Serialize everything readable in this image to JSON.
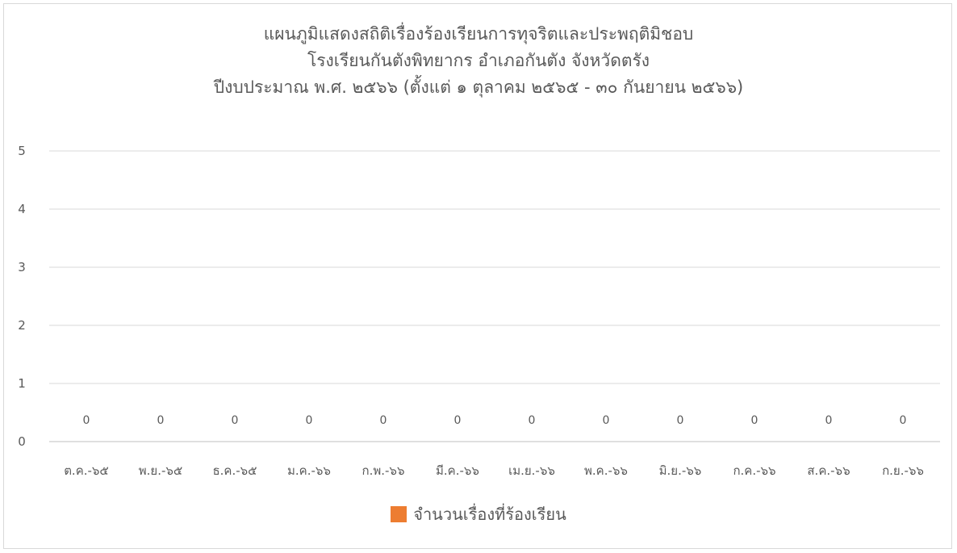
{
  "chart_data": {
    "type": "bar",
    "title": [
      "แผนภูมิแสดงสถิติเรื่องร้องเรียนการทุจริตและประพฤติมิชอบ",
      "โรงเรียนกันตังพิทยากร อำเภอกันตัง จังหวัดตรัง",
      "ปีงบประมาณ พ.ศ. ๒๕๖๖ (ตั้งแต่ ๑ ตุลาคม ๒๕๖๕ - ๓๐ กันยายน ๒๕๖๖)"
    ],
    "categories": [
      "ต.ค.-๖๕",
      "พ.ย.-๖๕",
      "ธ.ค.-๖๕",
      "ม.ค.-๖๖",
      "ก.พ.-๖๖",
      "มี.ค.-๖๖",
      "เม.ย.-๖๖",
      "พ.ค.-๖๖",
      "มิ.ย.-๖๖",
      "ก.ค.-๖๖",
      "ส.ค.-๖๖",
      "ก.ย.-๖๖"
    ],
    "series": [
      {
        "name": "จำนวนเรื่องที่ร้องเรียน",
        "color": "#ed7d31",
        "values": [
          0,
          0,
          0,
          0,
          0,
          0,
          0,
          0,
          0,
          0,
          0,
          0
        ]
      }
    ],
    "ylim": [
      0,
      5
    ],
    "yticks": [
      0,
      1,
      2,
      3,
      4,
      5
    ],
    "grid": true,
    "data_labels": true,
    "legend_position": "bottom"
  }
}
